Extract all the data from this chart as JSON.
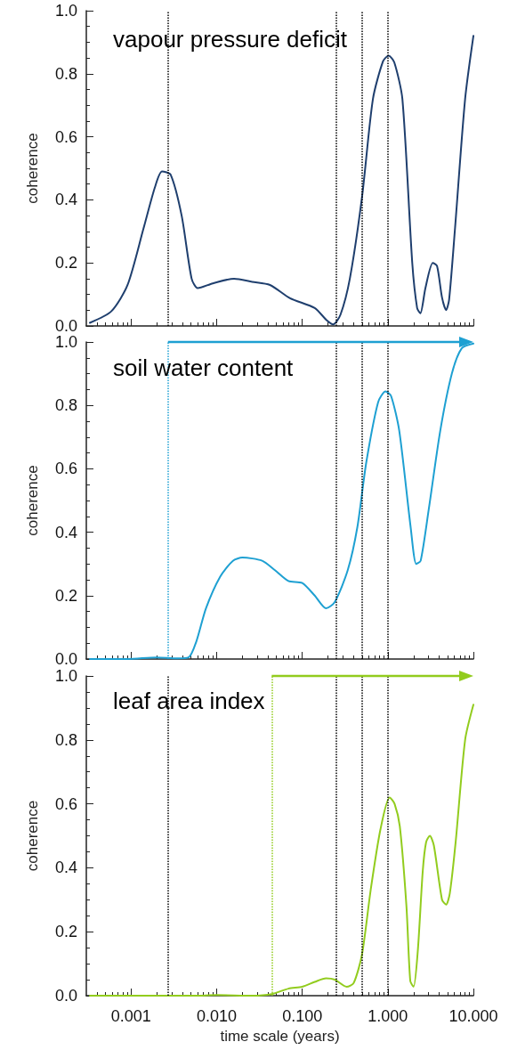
{
  "chart_data": [
    {
      "type": "line",
      "title": "vapour pressure deficit",
      "ylabel": "coherence",
      "tick_labels": "y",
      "marker": "none",
      "xlim": [
        0.0003,
        10
      ],
      "xticks": [
        {
          "value": 0.001,
          "label": null
        },
        {
          "value": 0.01,
          "label": null
        },
        {
          "value": 0.1,
          "label": null
        },
        {
          "value": 1,
          "label": null
        },
        {
          "value": 10,
          "label": null
        }
      ],
      "log": "x",
      "ylim": [
        0,
        1
      ],
      "yticks": [
        {
          "value": 0,
          "label": "0.0"
        },
        {
          "value": 0.2,
          "label": "0.2"
        },
        {
          "value": 0.4,
          "label": "0.4"
        },
        {
          "value": 0.6,
          "label": "0.6"
        },
        {
          "value": 0.8,
          "label": "0.8"
        },
        {
          "value": 1,
          "label": "1.0"
        }
      ],
      "ref_lines": [
        {
          "axis": "x",
          "value": 0.0027,
          "color": "#000000",
          "line_style": "dotted"
        },
        {
          "axis": "x",
          "value": 0.25,
          "color": "#000000",
          "line_style": "dotted"
        },
        {
          "axis": "x",
          "value": 0.5,
          "color": "#000000",
          "line_style": "dotted"
        },
        {
          "axis": "x",
          "value": 1,
          "color": "#000000",
          "line_style": "dotted"
        }
      ],
      "series": [
        {
          "color": "#1f3f6e",
          "x": [
            0.00033,
            0.00059,
            0.00091,
            0.0014,
            0.0019,
            0.0023,
            0.0029,
            0.0039,
            0.0051,
            0.006,
            0.009,
            0.016,
            0.026,
            0.042,
            0.072,
            0.14,
            0.19,
            0.23,
            0.28,
            0.36,
            0.5,
            0.67,
            0.88,
            1.02,
            1.19,
            1.48,
            1.93,
            2.2,
            2.4,
            2.75,
            3.35,
            3.76,
            4.3,
            4.8,
            5.2,
            6.1,
            8.0,
            10
          ],
          "values": [
            0.01,
            0.047,
            0.13,
            0.31,
            0.44,
            0.49,
            0.48,
            0.35,
            0.15,
            0.12,
            0.135,
            0.15,
            0.14,
            0.13,
            0.088,
            0.057,
            0.02,
            0.005,
            0.036,
            0.15,
            0.41,
            0.72,
            0.84,
            0.857,
            0.836,
            0.72,
            0.2,
            0.057,
            0.04,
            0.12,
            0.2,
            0.19,
            0.09,
            0.05,
            0.083,
            0.31,
            0.72,
            0.92
          ]
        }
      ]
    },
    {
      "type": "line",
      "title": "soil water content",
      "ylabel": "coherence",
      "tick_labels": "y",
      "marker": "none",
      "xlim": [
        0.0003,
        10
      ],
      "xticks": [
        {
          "value": 0.001,
          "label": null
        },
        {
          "value": 0.01,
          "label": null
        },
        {
          "value": 0.1,
          "label": null
        },
        {
          "value": 1,
          "label": null
        },
        {
          "value": 10,
          "label": null
        }
      ],
      "log": "x",
      "ylim": [
        0,
        1
      ],
      "yticks": [
        {
          "value": 0,
          "label": "0.0"
        },
        {
          "value": 0.2,
          "label": "0.2"
        },
        {
          "value": 0.4,
          "label": "0.4"
        },
        {
          "value": 0.6,
          "label": "0.6"
        },
        {
          "value": 0.8,
          "label": "0.8"
        },
        {
          "value": 1,
          "label": "1.0"
        }
      ],
      "ref_lines": [
        {
          "axis": "x",
          "value": 0.0027,
          "color": "#1ea0d2",
          "line_style": "dotted"
        },
        {
          "axis": "x",
          "value": 0.25,
          "color": "#000000",
          "line_style": "dotted"
        },
        {
          "axis": "x",
          "value": 0.5,
          "color": "#000000",
          "line_style": "dotted"
        },
        {
          "axis": "x",
          "value": 1,
          "color": "#000000",
          "line_style": "dotted"
        }
      ],
      "series": [
        {
          "color": "#1ea0d2",
          "x": [
            0.00033,
            0.00091,
            0.002,
            0.0035,
            0.0047,
            0.0058,
            0.0075,
            0.011,
            0.0155,
            0.02,
            0.034,
            0.048,
            0.069,
            0.1,
            0.14,
            0.19,
            0.24,
            0.34,
            0.44,
            0.56,
            0.77,
            0.94,
            1.09,
            1.36,
            1.85,
            2.15,
            2.42,
            3.0,
            4.1,
            5.6,
            7.3,
            10
          ],
          "values": [
            0,
            0,
            0.005,
            0.002,
            0.005,
            0.056,
            0.16,
            0.26,
            0.31,
            0.32,
            0.31,
            0.28,
            0.246,
            0.24,
            0.2,
            0.16,
            0.18,
            0.28,
            0.415,
            0.62,
            0.81,
            0.844,
            0.83,
            0.72,
            0.415,
            0.3,
            0.31,
            0.47,
            0.72,
            0.9,
            0.98,
            0.995
          ]
        }
      ]
    },
    {
      "type": "line",
      "title": "leaf area index",
      "ylabel": "coherence",
      "xlabel": "time scale (years)",
      "marker": "none",
      "xlim": [
        0.0003,
        10
      ],
      "xticks": [
        {
          "value": 0.001,
          "label": "0.001"
        },
        {
          "value": 0.01,
          "label": "0.010"
        },
        {
          "value": 0.1,
          "label": "0.100"
        },
        {
          "value": 1,
          "label": "1.000"
        },
        {
          "value": 10,
          "label": "10.000"
        }
      ],
      "log": "x",
      "ylim": [
        0,
        1
      ],
      "yticks": [
        {
          "value": 0,
          "label": "0.0"
        },
        {
          "value": 0.2,
          "label": "0.2"
        },
        {
          "value": 0.4,
          "label": "0.4"
        },
        {
          "value": 0.6,
          "label": "0.6"
        },
        {
          "value": 0.8,
          "label": "0.8"
        },
        {
          "value": 1,
          "label": "1.0"
        }
      ],
      "ref_lines": [
        {
          "axis": "x",
          "value": 0.0027,
          "color": "#000000",
          "line_style": "dotted"
        },
        {
          "axis": "x",
          "value": 0.044,
          "color": "#92cc1e",
          "line_style": "dotted"
        },
        {
          "axis": "x",
          "value": 0.25,
          "color": "#000000",
          "line_style": "dotted"
        },
        {
          "axis": "x",
          "value": 0.5,
          "color": "#000000",
          "line_style": "dotted"
        },
        {
          "axis": "x",
          "value": 1,
          "color": "#000000",
          "line_style": "dotted"
        }
      ],
      "series": [
        {
          "color": "#92cc1e",
          "x": [
            0.00033,
            0.0055,
            0.01,
            0.026,
            0.044,
            0.069,
            0.1,
            0.14,
            0.19,
            0.24,
            0.33,
            0.4,
            0.5,
            0.63,
            0.82,
            1.05,
            1.2,
            1.38,
            1.65,
            1.83,
            2.0,
            2.24,
            2.56,
            2.8,
            3.1,
            3.45,
            4.3,
            4.8,
            5.3,
            6.2,
            8.0,
            10
          ],
          "values": [
            0,
            0,
            0.002,
            0,
            0.005,
            0.022,
            0.028,
            0.043,
            0.054,
            0.05,
            0.028,
            0.04,
            0.13,
            0.33,
            0.52,
            0.62,
            0.6,
            0.53,
            0.28,
            0.046,
            0.028,
            0.14,
            0.39,
            0.48,
            0.5,
            0.47,
            0.3,
            0.285,
            0.32,
            0.48,
            0.8,
            0.91
          ]
        }
      ]
    }
  ]
}
